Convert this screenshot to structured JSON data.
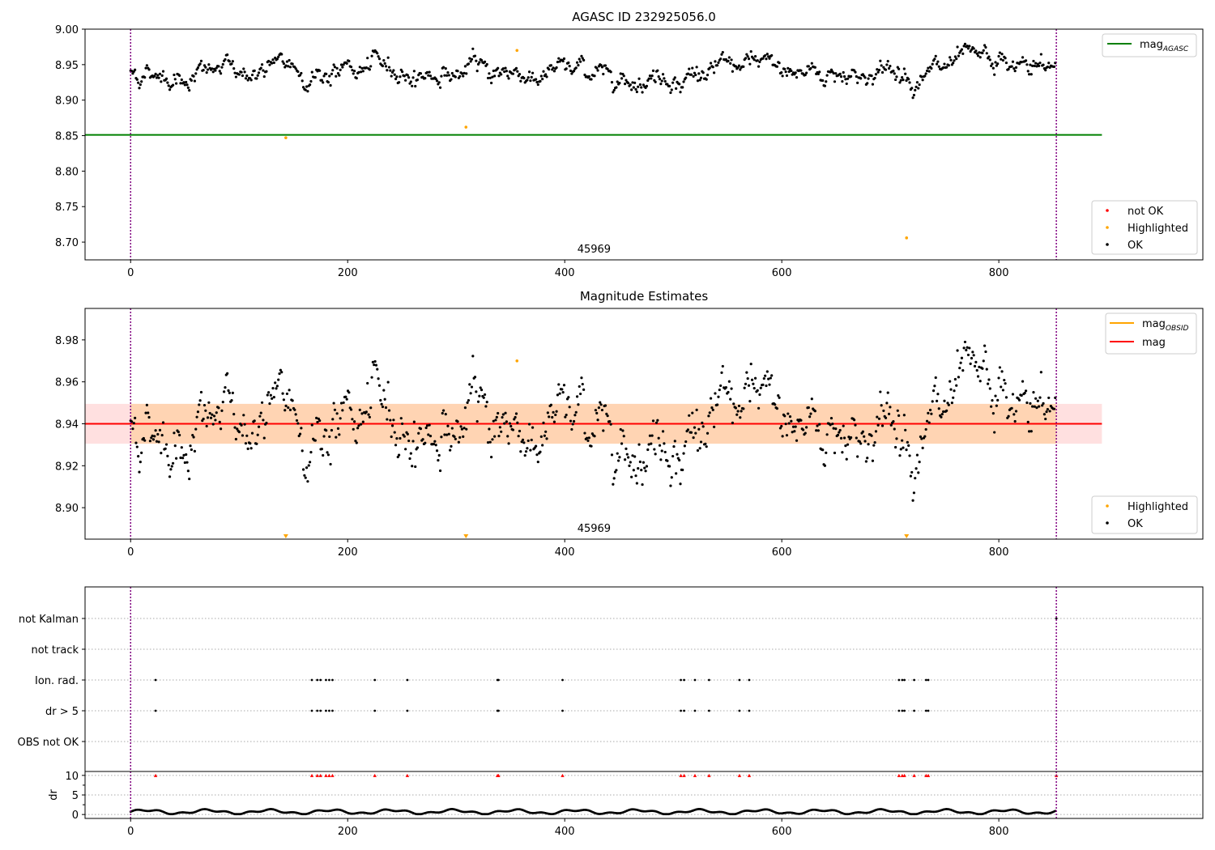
{
  "chart_data": [
    {
      "type": "scatter",
      "title": "AGASC ID 232925056.0",
      "annotation": "45969",
      "xlim": [
        -42,
        988
      ],
      "ylim": [
        8.675,
        9.0
      ],
      "xticks": [
        0,
        200,
        400,
        600,
        800
      ],
      "yticks": [
        8.7,
        8.75,
        8.8,
        8.85,
        8.9,
        8.95,
        9.0
      ],
      "ytick_labels": [
        "8.70",
        "8.75",
        "8.80",
        "8.85",
        "8.90",
        "8.95",
        "9.00"
      ],
      "vlines": [
        0,
        853
      ],
      "hline": {
        "name": "mag_AGASC",
        "y": 8.851,
        "x": [
          -42,
          895
        ],
        "color": "#008000"
      },
      "series": [
        {
          "name": "not OK",
          "color": "#ff0000",
          "values": []
        },
        {
          "name": "Highlighted",
          "color": "#ffa500",
          "x": [
            143,
            309,
            356,
            715
          ],
          "y": [
            8.847,
            8.862,
            8.97,
            8.706
          ]
        },
        {
          "name": "OK",
          "color": "#000000",
          "x_range": [
            0,
            852
          ],
          "n_points": 852,
          "mean": 8.94,
          "spread": 0.011
        }
      ],
      "legends": {
        "top": [
          "mag_AGASC"
        ],
        "bottom": [
          "not OK",
          "Highlighted",
          "OK"
        ]
      }
    },
    {
      "type": "scatter",
      "title": "Magnitude Estimates",
      "annotation": "45969",
      "xlim": [
        -42,
        988
      ],
      "ylim": [
        8.885,
        8.995
      ],
      "xticks": [
        0,
        200,
        400,
        600,
        800
      ],
      "yticks": [
        8.9,
        8.92,
        8.94,
        8.96,
        8.98
      ],
      "ytick_labels": [
        "8.90",
        "8.92",
        "8.94",
        "8.96",
        "8.98"
      ],
      "vlines": [
        0,
        853
      ],
      "bands": [
        {
          "name": "mag_OBSID",
          "y": [
            8.9305,
            8.9495
          ],
          "x": [
            0,
            853
          ],
          "color": "#ffa500"
        },
        {
          "name": "mag",
          "y": [
            8.9305,
            8.9495
          ],
          "x": [
            -42,
            895
          ],
          "color": "#ff0000"
        }
      ],
      "lines": [
        {
          "name": "mag_OBSID",
          "y": 8.94,
          "x": [
            0,
            853
          ],
          "color": "#ffa500"
        },
        {
          "name": "mag",
          "y": 8.94,
          "x": [
            -42,
            895
          ],
          "color": "#ff0000"
        }
      ],
      "series": [
        {
          "name": "Highlighted",
          "color": "#ffa500",
          "x": [
            356
          ],
          "y": [
            8.97
          ],
          "below_range_x": [
            143,
            309,
            715
          ]
        },
        {
          "name": "OK",
          "color": "#000000",
          "x_range": [
            0,
            852
          ],
          "n_points": 852,
          "mean": 8.94,
          "spread": 0.011
        }
      ],
      "legends": {
        "top": [
          "mag_OBSID",
          "mag"
        ],
        "bottom": [
          "Highlighted",
          "OK"
        ]
      }
    },
    {
      "type": "scatter",
      "xlim": [
        -42,
        988
      ],
      "xticks": [
        0,
        200,
        400,
        600,
        800
      ],
      "vlines": [
        0,
        853
      ],
      "categories": [
        "not Kalman",
        "not track",
        "Ion. rad.",
        "dr > 5",
        "OBS not OK"
      ],
      "flags": {
        "not Kalman": [
          853
        ],
        "not track": [],
        "Ion. rad.": [
          23,
          167,
          172,
          175,
          180,
          183,
          186,
          225,
          255,
          338,
          339,
          398,
          507,
          510,
          520,
          533,
          561,
          570,
          708,
          711,
          713,
          722,
          733,
          735
        ],
        "dr > 5": [
          23,
          167,
          172,
          175,
          180,
          183,
          186,
          225,
          255,
          338,
          339,
          398,
          507,
          510,
          520,
          533,
          561,
          570,
          708,
          711,
          713,
          722,
          733,
          735
        ],
        "OBS not OK": []
      }
    },
    {
      "type": "scatter",
      "ylabel": "dr",
      "xlim": [
        -42,
        988
      ],
      "ylim": [
        -1,
        11
      ],
      "xticks": [
        0,
        200,
        400,
        600,
        800
      ],
      "yticks": [
        0,
        5,
        10
      ],
      "vlines": [
        0,
        853
      ],
      "capped_value": 10,
      "capped_x": [
        23,
        167,
        172,
        175,
        180,
        183,
        186,
        225,
        255,
        338,
        339,
        398,
        507,
        510,
        520,
        533,
        561,
        570,
        708,
        711,
        713,
        722,
        733,
        735,
        853
      ],
      "series": [
        {
          "name": "dr",
          "color": "#000000",
          "x_range": [
            0,
            852
          ],
          "n_points": 852,
          "typical": 0.7,
          "range": [
            0.1,
            1.8
          ]
        }
      ]
    }
  ]
}
